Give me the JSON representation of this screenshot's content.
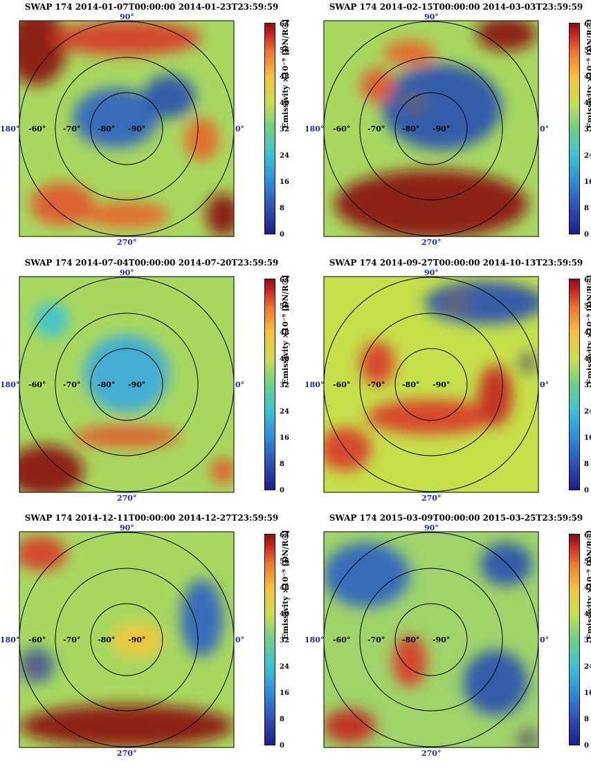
{
  "figure": {
    "colorbar": {
      "label": "Emissivity ×10⁻⁹ [DN/R☉]",
      "ticks": [
        "64",
        "56",
        "48",
        "40",
        "32",
        "24",
        "16",
        "8",
        "0"
      ],
      "range": [
        0,
        64
      ],
      "colormap": [
        "#1b1f8a",
        "#2e8fd9",
        "#39c2d6",
        "#c6e04a",
        "#f5c53a",
        "#f07b2a",
        "#c4241f",
        "#8b1010"
      ]
    },
    "longitude_labels": {
      "top": "90°",
      "left": "180°",
      "right": "0°",
      "bottom": "270°"
    },
    "latitude_labels": [
      "-60°",
      "-70°",
      "-80°",
      "-90°"
    ]
  },
  "chart_data": [
    {
      "type": "heatmap",
      "title": "SWAP 174 2014-01-07T00:00:00 2014-01-23T23:59:59"
    },
    {
      "type": "heatmap",
      "title": "SWAP 174 2014-02-15T00:00:00 2014-03-03T23:59:59"
    },
    {
      "type": "heatmap",
      "title": "SWAP 174 2014-07-04T00:00:00 2014-07-20T23:59:59"
    },
    {
      "type": "heatmap",
      "title": "SWAP 174 2014-09-27T00:00:00 2014-10-13T23:59:59"
    },
    {
      "type": "heatmap",
      "title": "SWAP 174 2014-12-11T00:00:00 2014-12-27T23:59:59"
    },
    {
      "type": "heatmap",
      "title": "SWAP 174 2015-03-09T00:00:00 2015-03-25T23:59:59"
    }
  ]
}
